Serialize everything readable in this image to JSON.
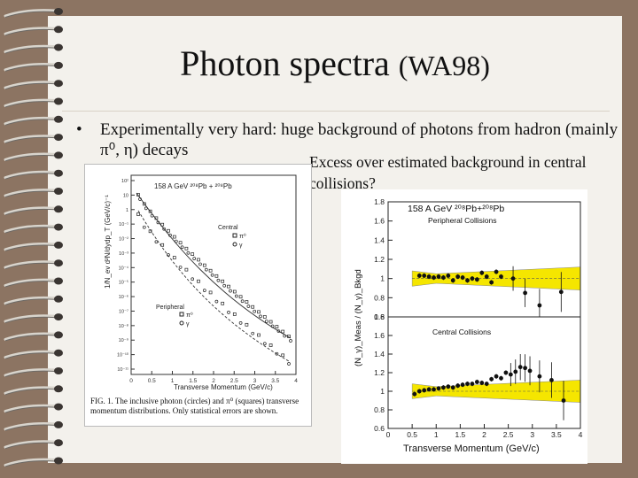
{
  "slide": {
    "title_main": "Photon spectra",
    "title_paren": "(WA98)",
    "bullet_text": "Experimentally very hard: huge background of photons from hadron (mainly π⁰, η) decays",
    "excess_text": "Excess over estimated background in central collisions?"
  },
  "left_figure": {
    "energy_label": "158 A GeV ²⁰⁸Pb + ²⁰⁸Pb",
    "ylabel": "1/N_ev d²N/dydp_T (GeV/c)⁻¹",
    "xlabel": "Transverse Momentum (GeV/c)",
    "central_label": "Central",
    "peripheral_label": "Peripheral",
    "legend_pi0": "π⁰",
    "legend_gamma": "γ",
    "caption": "FIG. 1.  The inclusive photon (circles) and π⁰ (squares) transverse momentum distributions. Only statistical errors are shown.",
    "xticks": [
      "0",
      "0.5",
      "1",
      "1.5",
      "2",
      "2.5",
      "3",
      "3.5",
      "4"
    ],
    "yticks": [
      "10²",
      "10",
      "1",
      "10⁻¹",
      "10⁻²",
      "10⁻³",
      "10⁻⁴",
      "10⁻⁵",
      "10⁻⁶",
      "10⁻⁷",
      "10⁻⁸",
      "10⁻⁹",
      "10⁻¹⁰",
      "10⁻¹¹"
    ]
  },
  "right_figure": {
    "energy_label": "158 A GeV ²⁰⁸Pb+²⁰⁸Pb",
    "peripheral_label": "Peripheral Collisions",
    "central_label": "Central Collisions",
    "ylabel": "(N_γ)_Meas / (N_γ)_Bkgd",
    "xlabel": "Transverse Momentum (GeV/c)",
    "band_color": "#f5e600"
  },
  "chart_data": [
    {
      "type": "scatter",
      "panel": "peripheral",
      "xlim": [
        0,
        4
      ],
      "ylim": [
        0.6,
        1.8
      ],
      "x": [
        0.65,
        0.75,
        0.85,
        0.95,
        1.05,
        1.15,
        1.25,
        1.35,
        1.45,
        1.55,
        1.65,
        1.75,
        1.85,
        1.95,
        2.05,
        2.15,
        2.25,
        2.35,
        2.6,
        2.85,
        3.15,
        3.6
      ],
      "y": [
        1.03,
        1.03,
        1.02,
        1.01,
        1.02,
        1.01,
        1.03,
        0.98,
        1.02,
        1.01,
        0.98,
        1.0,
        0.99,
        1.06,
        1.02,
        0.96,
        1.07,
        1.02,
        1.0,
        0.85,
        0.72,
        0.86
      ],
      "xticks": [
        "0",
        "0.5",
        "1",
        "1.5",
        "2",
        "2.5",
        "3",
        "3.5",
        "4"
      ],
      "yticks": [
        "0.6",
        "0.8",
        "1",
        "1.2",
        "1.4",
        "1.6",
        "1.8"
      ]
    },
    {
      "type": "scatter",
      "panel": "central",
      "xlim": [
        0,
        4
      ],
      "ylim": [
        0.6,
        1.8
      ],
      "x": [
        0.55,
        0.65,
        0.75,
        0.85,
        0.95,
        1.05,
        1.15,
        1.25,
        1.35,
        1.45,
        1.55,
        1.65,
        1.75,
        1.85,
        1.95,
        2.05,
        2.15,
        2.25,
        2.35,
        2.45,
        2.55,
        2.65,
        2.75,
        2.85,
        2.95,
        3.15,
        3.4,
        3.65
      ],
      "y": [
        0.97,
        1.0,
        1.01,
        1.02,
        1.02,
        1.03,
        1.04,
        1.05,
        1.04,
        1.06,
        1.07,
        1.08,
        1.08,
        1.1,
        1.09,
        1.08,
        1.13,
        1.16,
        1.14,
        1.2,
        1.18,
        1.21,
        1.26,
        1.25,
        1.22,
        1.16,
        1.12,
        0.9
      ],
      "xticks": [
        "0",
        "0.5",
        "1",
        "1.5",
        "2",
        "2.5",
        "3",
        "3.5",
        "4"
      ],
      "yticks": [
        "0.6",
        "0.8",
        "1",
        "1.2",
        "1.4",
        "1.6",
        "1.8"
      ]
    }
  ]
}
